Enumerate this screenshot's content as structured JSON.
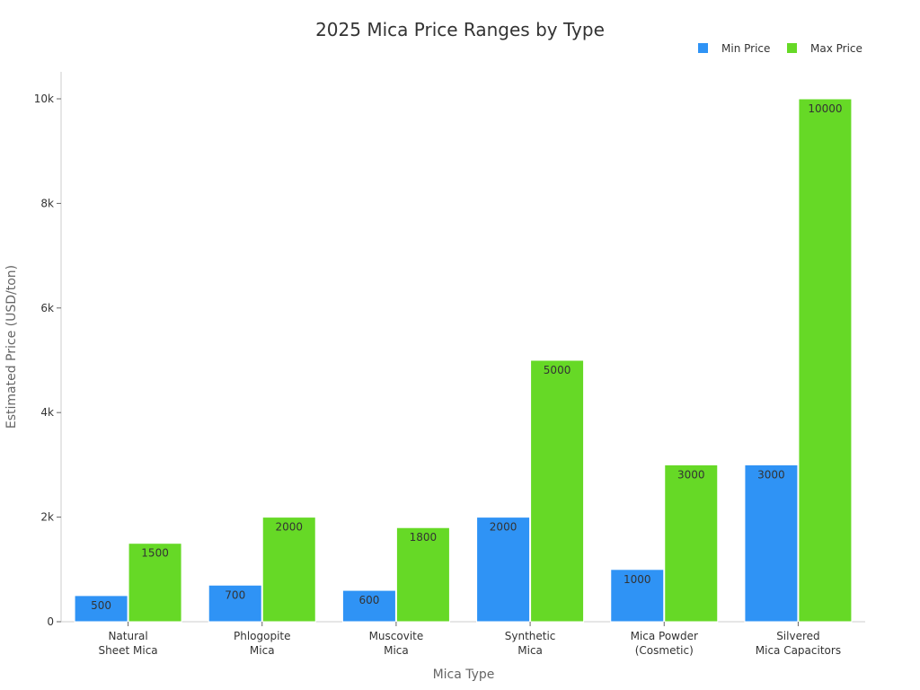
{
  "chart_data": {
    "type": "bar",
    "title": "2025 Mica Price Ranges by Type",
    "xlabel": "Mica Type",
    "ylabel": "Estimated Price (USD/ton)",
    "categories": [
      [
        "Natural",
        "Sheet Mica"
      ],
      [
        "Phlogopite",
        "Mica"
      ],
      [
        "Muscovite",
        "Mica"
      ],
      [
        "Synthetic",
        "Mica"
      ],
      [
        "Mica Powder",
        "(Cosmetic)"
      ],
      [
        "Silvered",
        "Mica Capacitors"
      ]
    ],
    "series": [
      {
        "name": "Min Price",
        "color": "#2f93f5",
        "values": [
          500,
          700,
          600,
          2000,
          1000,
          3000
        ]
      },
      {
        "name": "Max Price",
        "color": "#66d926",
        "values": [
          1500,
          2000,
          1800,
          5000,
          3000,
          10000
        ]
      }
    ],
    "ylim": [
      0,
      10500
    ],
    "yticks": [
      0,
      2000,
      4000,
      6000,
      8000,
      10000
    ],
    "ytick_labels": [
      "0",
      "2k",
      "4k",
      "6k",
      "8k",
      "10k"
    ],
    "grid": false,
    "legend_position": "top-right"
  }
}
